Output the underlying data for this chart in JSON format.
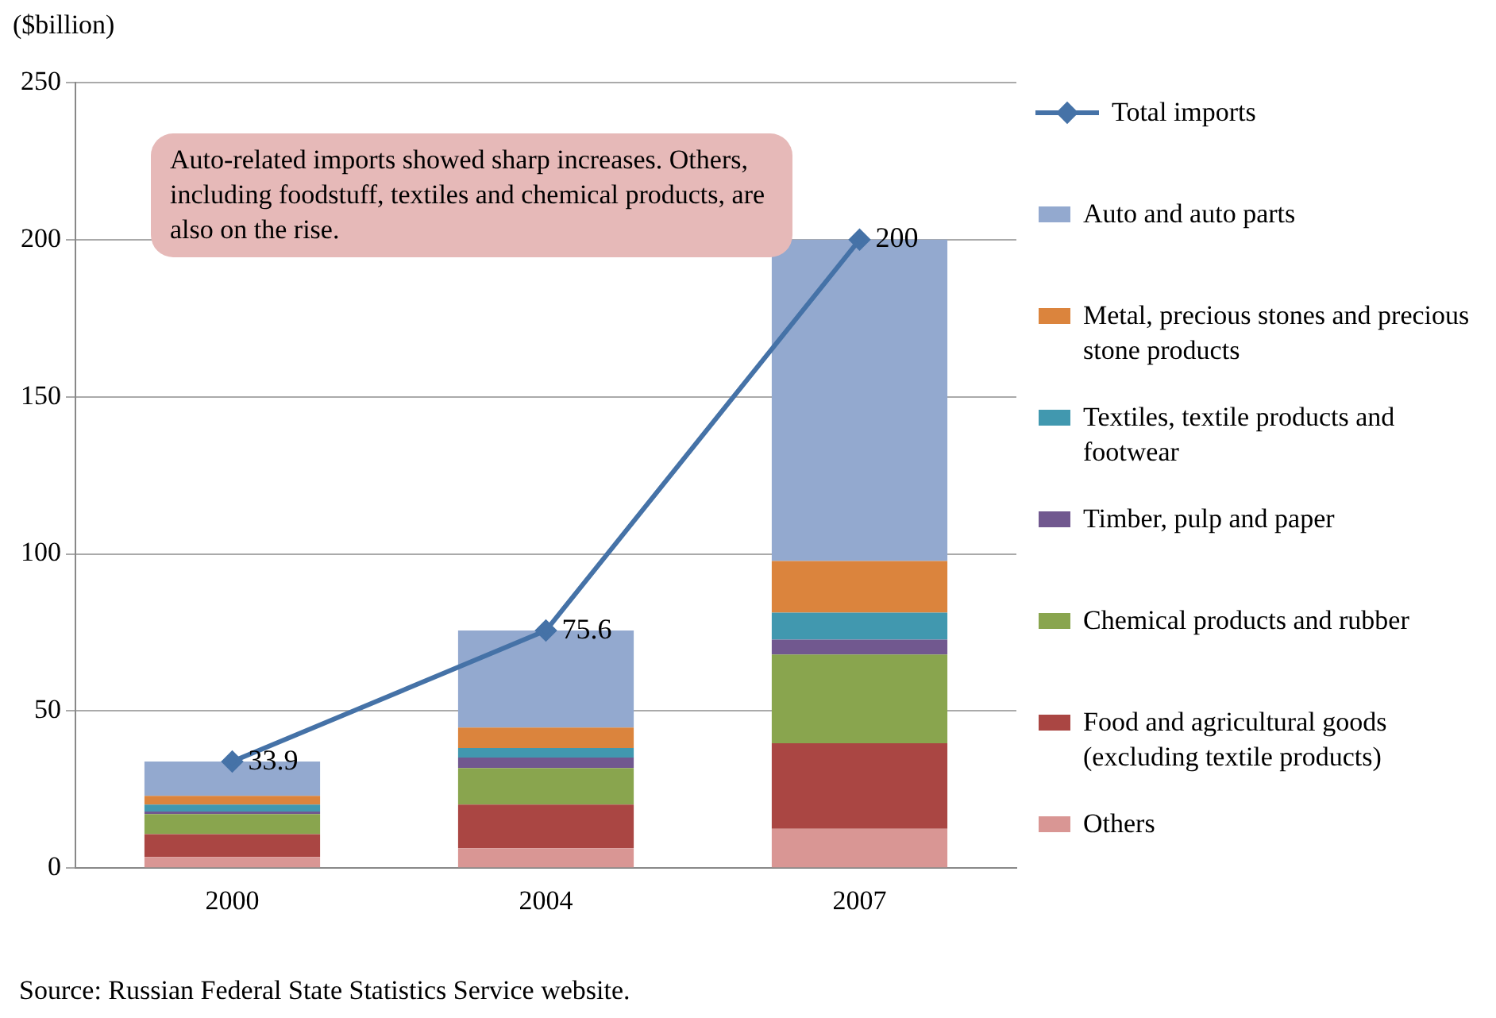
{
  "chart_data": {
    "type": "bar",
    "stacked": true,
    "ylabel": "($billion)",
    "categories": [
      "2000",
      "2004",
      "2007"
    ],
    "series": [
      {
        "name": "Others",
        "color": "#d99694",
        "values": [
          3.5,
          6.3,
          12.5
        ]
      },
      {
        "name": "Food and agricultural goods (excluding textile products)",
        "color": "#aa4643",
        "values": [
          7.3,
          13.9,
          27.2
        ]
      },
      {
        "name": "Chemical products and rubber",
        "color": "#89a54e",
        "values": [
          6.4,
          11.6,
          28.3
        ]
      },
      {
        "name": "Timber, pulp and paper",
        "color": "#71588f",
        "values": [
          0.8,
          3.4,
          4.7
        ]
      },
      {
        "name": "Textiles, textile products and footwear",
        "color": "#4198af",
        "values": [
          2.2,
          3.0,
          8.6
        ]
      },
      {
        "name": "Metal, precious stones and precious stone products",
        "color": "#db843d",
        "values": [
          2.8,
          6.5,
          16.4
        ]
      },
      {
        "name": "Auto and auto parts",
        "color": "#93a9cf",
        "values": [
          10.9,
          30.9,
          102.3
        ]
      },
      {
        "name": "Total imports",
        "type": "line",
        "color": "#4572a7",
        "marker": "diamond",
        "values": [
          33.9,
          75.6,
          200
        ],
        "value_labels": [
          "33.9",
          "75.6",
          "200"
        ]
      }
    ],
    "ylim": [
      0,
      250
    ],
    "yticks": [
      0,
      50,
      100,
      150,
      200,
      250
    ],
    "grid": "y",
    "legend": "right",
    "annotations": [
      "Auto-related imports showed sharp increases. Others, including foodstuff, textiles and chemical products, are also on the rise.",
      "Source: Russian Federal State Statistics Service website."
    ]
  }
}
